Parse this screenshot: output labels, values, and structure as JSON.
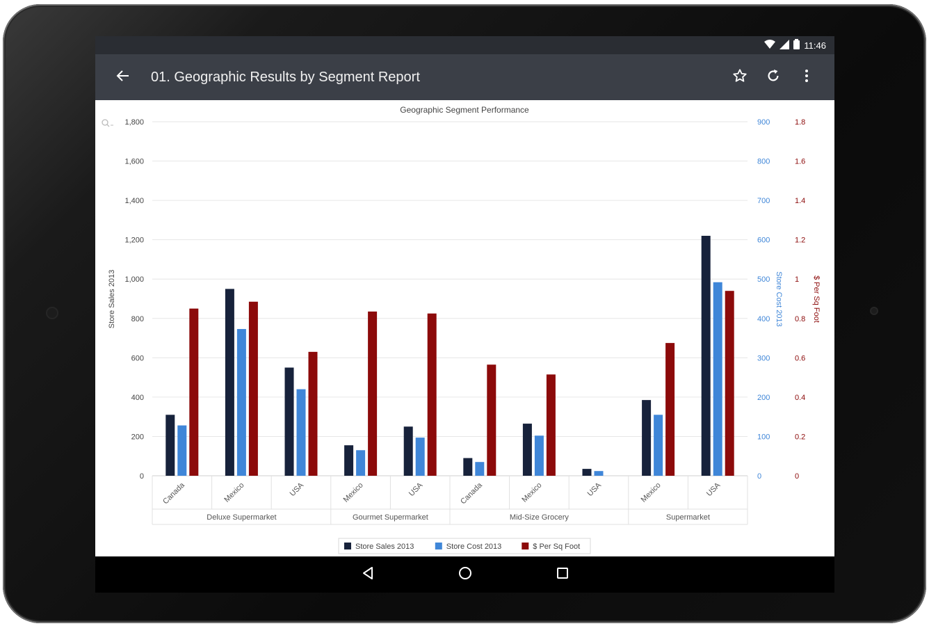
{
  "status": {
    "time": "11:46"
  },
  "appbar": {
    "title": "01. Geographic Results by Segment Report"
  },
  "colors": {
    "sales": "#17223b",
    "cost": "#3f86d8",
    "sqft": "#8c0a0a",
    "appbar": "#3b3f47"
  },
  "icons": [
    "wifi-icon",
    "signal-icon",
    "battery-icon",
    "back-arrow-icon",
    "star-icon",
    "refresh-icon",
    "more-vert-icon",
    "zoom-icon",
    "nav-back-icon",
    "nav-home-icon",
    "nav-recents-icon"
  ],
  "chart_data": {
    "type": "bar",
    "title": "Geographic Segment Performance",
    "axes": {
      "left": {
        "label": "Store Sales 2013",
        "range": [
          0,
          1800
        ],
        "ticks": [
          "0",
          "200",
          "400",
          "600",
          "800",
          "1,000",
          "1,200",
          "1,400",
          "1,600",
          "1,800"
        ]
      },
      "right1": {
        "label": "Store Cost 2013",
        "range": [
          0,
          900
        ],
        "ticks": [
          "0",
          "100",
          "200",
          "300",
          "400",
          "500",
          "600",
          "700",
          "800",
          "900"
        ]
      },
      "right2": {
        "label": "$ Per Sq Foot",
        "range": [
          0,
          1.8
        ],
        "ticks": [
          "0",
          "0.2",
          "0.4",
          "0.6",
          "0.8",
          "1",
          "1.2",
          "1.4",
          "1.6",
          "1.8"
        ]
      }
    },
    "categories": [
      "Canada",
      "Mexico",
      "USA",
      "Mexico",
      "USA",
      "Canada",
      "Mexico",
      "USA",
      "Mexico",
      "USA"
    ],
    "groups": [
      {
        "label": "Deluxe Supermarket",
        "span": 3
      },
      {
        "label": "Gourmet Supermarket",
        "span": 2
      },
      {
        "label": "Mid-Size Grocery",
        "span": 3
      },
      {
        "label": "Supermarket",
        "span": 2
      }
    ],
    "series": [
      {
        "name": "Store Sales 2013",
        "axis": "left",
        "values": [
          310,
          950,
          550,
          155,
          250,
          90,
          265,
          35,
          385,
          1220
        ]
      },
      {
        "name": "Store Cost 2013",
        "axis": "right1",
        "values": [
          128,
          373,
          220,
          65,
          97,
          35,
          102,
          12,
          155,
          492
        ]
      },
      {
        "name": "$ Per Sq Foot",
        "axis": "right2",
        "values": [
          0.85,
          0.885,
          0.63,
          0.835,
          0.825,
          0.565,
          0.515,
          null,
          0.675,
          0.94
        ]
      }
    ],
    "legend_position": "bottom",
    "grid": true
  }
}
